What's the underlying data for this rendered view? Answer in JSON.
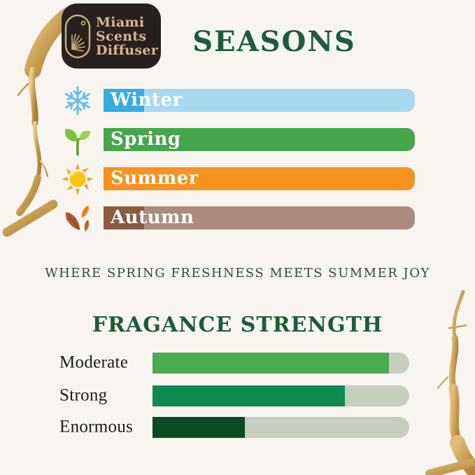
{
  "theme": {
    "background": "#f8f5f1",
    "heading_green": "#1d5c37",
    "tagline_green": "#32493a",
    "logo_bg": "#26211f",
    "logo_gold": "#d9b68a",
    "brush_gold": "#c49a4e"
  },
  "logo": {
    "lines": [
      "Miami",
      "Scents",
      "Diffuser"
    ],
    "icon": "palm-capsule-icon"
  },
  "seasons": {
    "title": "SEASONS",
    "items": [
      {
        "name": "Winter",
        "icon": "snowflake-icon",
        "bar_color": "#a6d9f0",
        "accent_color": "#39abde",
        "icon_color": "#68bde8"
      },
      {
        "name": "Spring",
        "icon": "sprout-icon",
        "bar_color": "#46a64b",
        "accent_color": "#46a64b",
        "icon_color": "#7cc242"
      },
      {
        "name": "Summer",
        "icon": "sun-icon",
        "bar_color": "#f6921e",
        "accent_color": "#f6921e",
        "icon_color": "#fbc40f"
      },
      {
        "name": "Autumn",
        "icon": "autumn-leaves-icon",
        "bar_color": "#ac8c7f",
        "accent_color": "#8c5a41",
        "icon_color": "#b25c33"
      }
    ]
  },
  "tagline": "WHERE SPRING FRESHNESS MEETS SUMMER JOY",
  "strength": {
    "title": "FRAGANCE STRENGTH",
    "track_color": "#c7cec0",
    "items": [
      {
        "label": "Moderate",
        "percent": 92,
        "fill_color": "#4aab51"
      },
      {
        "label": "Strong",
        "percent": 75,
        "fill_color": "#0c8a4f"
      },
      {
        "label": "Enormous",
        "percent": 36,
        "fill_color": "#0b4d22"
      }
    ]
  },
  "chart_data": {
    "type": "bar",
    "title": "FRAGANCE STRENGTH",
    "categories": [
      "Moderate",
      "Strong",
      "Enormous"
    ],
    "values": [
      92,
      75,
      36
    ],
    "xlabel": "",
    "ylabel": "",
    "ylim": [
      0,
      100
    ],
    "legend": "none",
    "grid": false
  }
}
